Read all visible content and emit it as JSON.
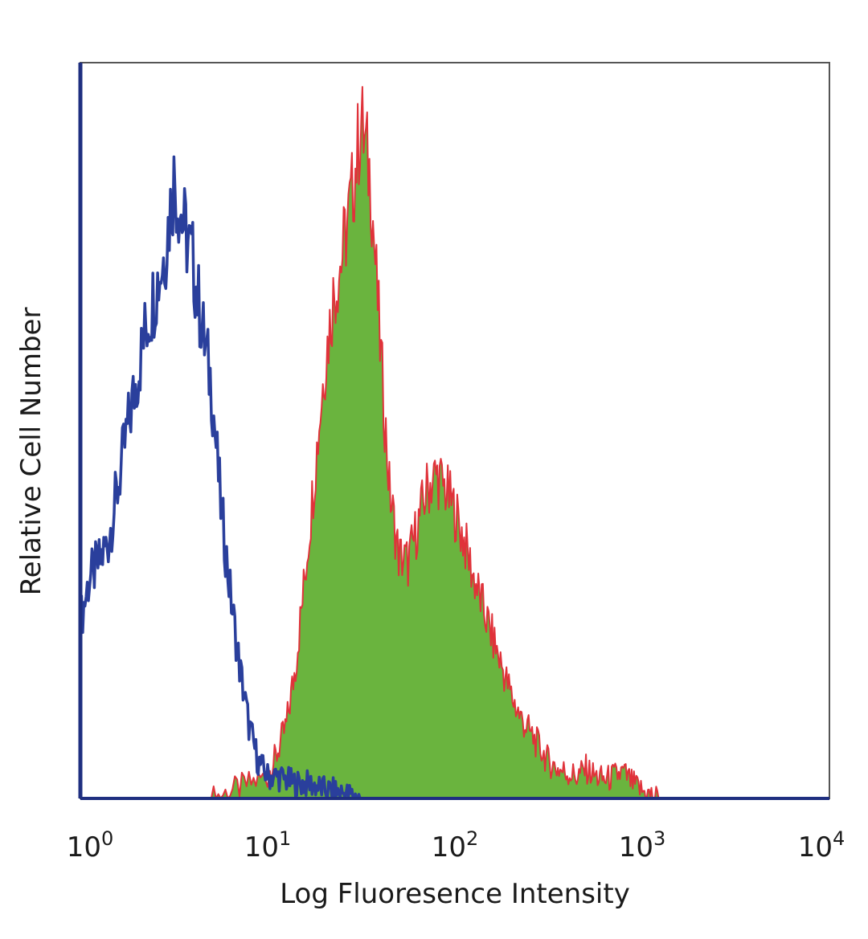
{
  "chart_data": {
    "type": "area",
    "xlabel": "Log Fluoresence Intensity",
    "ylabel": "Relative Cell Number",
    "x_scale": "log",
    "xlim": [
      1,
      10000
    ],
    "ylim": [
      0,
      1.0
    ],
    "grid": false,
    "x_ticks": [
      {
        "value": 1,
        "base": "10",
        "exp": "0"
      },
      {
        "value": 10,
        "base": "10",
        "exp": "1"
      },
      {
        "value": 100,
        "base": "10",
        "exp": "2"
      },
      {
        "value": 1000,
        "base": "10",
        "exp": "3"
      },
      {
        "value": 10000,
        "base": "10",
        "exp": "4"
      }
    ],
    "series": [
      {
        "style": "outline",
        "color": "#2a3f9c",
        "x": [
          1.0,
          1.12,
          1.26,
          1.41,
          1.58,
          1.78,
          2.0,
          2.24,
          2.51,
          2.82,
          3.16,
          3.55,
          3.98,
          4.47,
          5.01,
          5.62,
          6.31,
          7.08,
          7.94,
          8.91,
          10.0,
          11.2,
          12.6,
          14.1,
          15.8,
          17.8,
          20.0,
          22.4,
          25.1,
          28.2,
          31.6
        ],
        "y": [
          0.24,
          0.3,
          0.32,
          0.35,
          0.42,
          0.5,
          0.57,
          0.64,
          0.69,
          0.74,
          0.84,
          0.78,
          0.73,
          0.64,
          0.56,
          0.4,
          0.28,
          0.18,
          0.1,
          0.05,
          0.03,
          0.03,
          0.025,
          0.02,
          0.02,
          0.018,
          0.012,
          0.01,
          0.008,
          0.004,
          0.0
        ]
      },
      {
        "style": "filled",
        "color": "#6ab43e",
        "edge_color": "#e0323a",
        "x": [
          5.0,
          6.31,
          7.94,
          10.0,
          11.2,
          12.6,
          14.1,
          15.8,
          17.8,
          20.0,
          22.4,
          25.1,
          28.2,
          31.6,
          35.5,
          39.8,
          44.7,
          50.1,
          56.2,
          63.1,
          70.8,
          79.4,
          89.1,
          100.0,
          112.0,
          126.0,
          141.0,
          158.0,
          178.0,
          200.0,
          224.0,
          251.0,
          282.0,
          316.0,
          355.0,
          398.0,
          447.0,
          501.0,
          562.0,
          631.0,
          708.0,
          794.0,
          891.0,
          1000.0,
          1120.0,
          1260.0
        ],
        "y": [
          0.0,
          0.01,
          0.02,
          0.03,
          0.06,
          0.1,
          0.18,
          0.3,
          0.44,
          0.58,
          0.68,
          0.74,
          0.82,
          0.92,
          0.84,
          0.62,
          0.42,
          0.33,
          0.32,
          0.37,
          0.42,
          0.44,
          0.42,
          0.39,
          0.35,
          0.3,
          0.26,
          0.22,
          0.18,
          0.14,
          0.11,
          0.09,
          0.07,
          0.05,
          0.04,
          0.035,
          0.03,
          0.04,
          0.03,
          0.025,
          0.03,
          0.035,
          0.02,
          0.01,
          0.004,
          0.0
        ]
      }
    ]
  }
}
